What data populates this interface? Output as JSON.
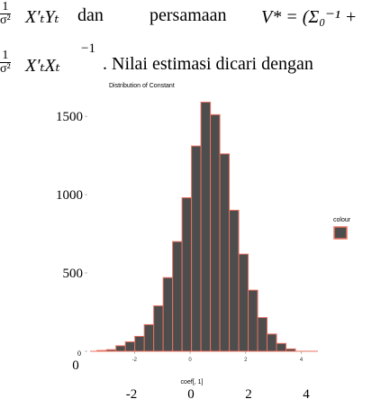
{
  "text": {
    "line1_frac_num": "1",
    "line1_frac_den": "σ²",
    "line1_expr": "X′ₜYₜ",
    "line1_dan": "dan",
    "line1_persamaan": "persamaan",
    "line1_vstar": "V* = (Σ₀⁻¹ +",
    "line2_frac_num": "1",
    "line2_frac_den": "σ²",
    "line2_expr": "X′ₜXₜ",
    "line2_exp": "−1",
    "line2_rest": ". Nilai estimasi dicari dengan"
  },
  "chart_data": {
    "type": "bar",
    "title": "Distribution of Constant",
    "xlabel": "coef[, 1]",
    "ylabel": "",
    "legend_title": "colour",
    "bar_fill": "#4d4d4d",
    "bar_outline": "#e8705f",
    "xlim": [
      -3.6,
      4.6
    ],
    "ylim": [
      0,
      1650
    ],
    "bin_width": 0.34,
    "bin_start": -3.35,
    "counts": [
      5,
      10,
      35,
      60,
      95,
      170,
      290,
      470,
      700,
      980,
      1310,
      1590,
      1510,
      1260,
      900,
      620,
      390,
      215,
      110,
      50,
      15
    ],
    "y_ticks": [
      0,
      500,
      1000,
      1500
    ],
    "x_ticks_small": [
      "-2",
      "0",
      "2",
      "4"
    ],
    "x_ticks_small_values": [
      -2,
      0,
      2,
      4
    ],
    "x_ticks_large": [
      "-2",
      "0",
      "2",
      "4"
    ],
    "y_zero_large": "0"
  }
}
